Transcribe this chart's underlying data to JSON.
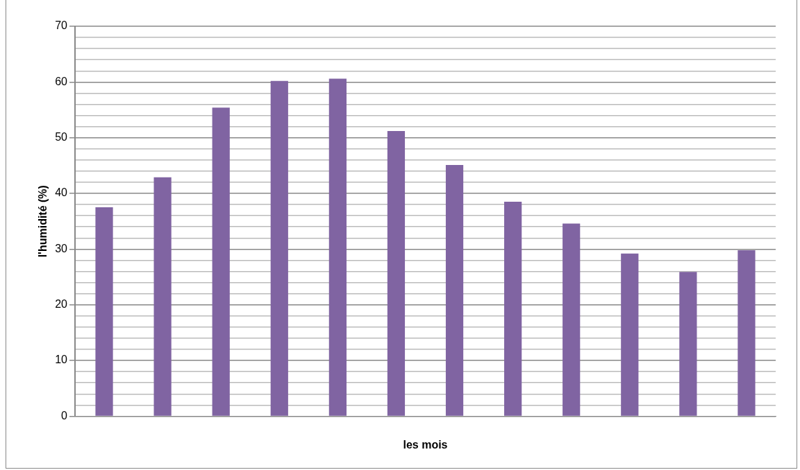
{
  "chart_data": {
    "type": "bar",
    "xlabel": "les mois",
    "ylabel": "l'humidité (%)",
    "categories": [
      null,
      null,
      null,
      null,
      null,
      null,
      null,
      null,
      null,
      null,
      null,
      null
    ],
    "values": [
      37.5,
      42.9,
      55.4,
      60.2,
      60.6,
      51.2,
      45.1,
      38.5,
      34.6,
      29.2,
      25.9,
      29.8
    ],
    "color": "#8064a2",
    "ylim": [
      0,
      70
    ],
    "yticks": [
      0,
      {
        "value": 2,
        "label": null
      },
      {
        "value": 4,
        "label": null
      },
      {
        "value": 6,
        "label": null
      },
      {
        "value": 8,
        "label": null
      },
      10,
      {
        "value": 12,
        "label": null
      },
      {
        "value": 14,
        "label": null
      },
      {
        "value": 16,
        "label": null
      },
      {
        "value": 18,
        "label": null
      },
      20,
      {
        "value": 22,
        "label": null
      },
      {
        "value": 24,
        "label": null
      },
      {
        "value": 26,
        "label": null
      },
      {
        "value": 28,
        "label": null
      },
      30,
      {
        "value": 32,
        "label": null
      },
      {
        "value": 34,
        "label": null
      },
      {
        "value": 36,
        "label": null
      },
      {
        "value": 38,
        "label": null
      },
      40,
      {
        "value": 42,
        "label": null
      },
      {
        "value": 44,
        "label": null
      },
      {
        "value": 46,
        "label": null
      },
      {
        "value": 48,
        "label": null
      },
      50,
      {
        "value": 52,
        "label": null
      },
      {
        "value": 54,
        "label": null
      },
      {
        "value": 56,
        "label": null
      },
      {
        "value": 58,
        "label": null
      },
      60,
      {
        "value": 62,
        "label": null
      },
      {
        "value": 64,
        "label": null
      },
      {
        "value": 66,
        "label": null
      },
      {
        "value": 68,
        "label": null
      },
      70
    ],
    "grid": "y",
    "legend": false
  }
}
